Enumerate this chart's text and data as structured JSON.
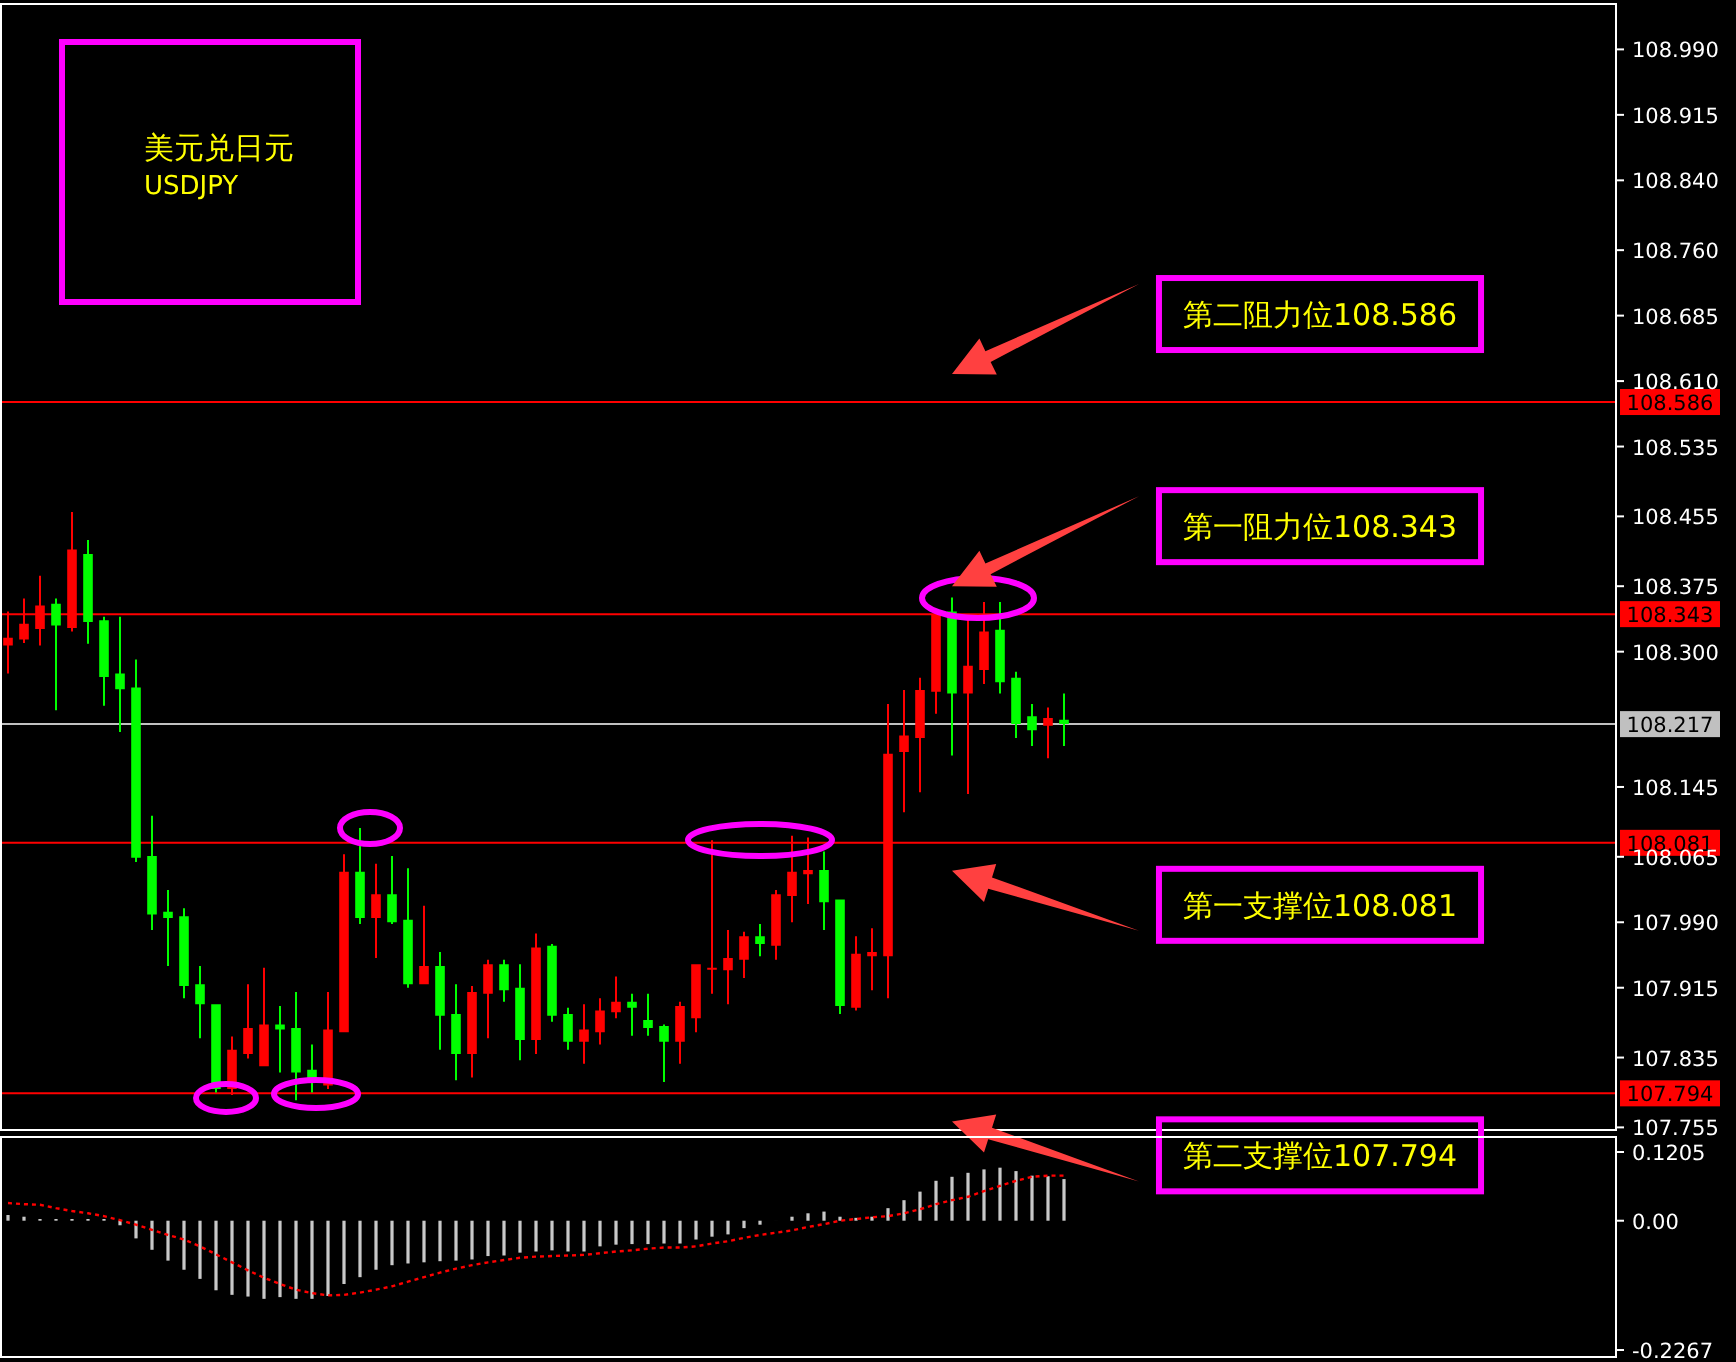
{
  "chart_data": [
    {
      "type": "candlestick",
      "title": "美元兑日元",
      "subtitle": "USDJPY",
      "tick_labels": "y",
      "categories": [
        null,
        null,
        null,
        null,
        null,
        null,
        null,
        null,
        null,
        null,
        null,
        null,
        null,
        null,
        null,
        null,
        null,
        null,
        null,
        null,
        null,
        null,
        null,
        null,
        null,
        null,
        null,
        null,
        null,
        null,
        null,
        null,
        null,
        null,
        null,
        null,
        null,
        null,
        null,
        null,
        null,
        null,
        null,
        null,
        null,
        null,
        null,
        null,
        null,
        null,
        null,
        null,
        null,
        null,
        null,
        null,
        null,
        null,
        null,
        null,
        null,
        null,
        null,
        null,
        null,
        null,
        null,
        null,
        null,
        null,
        null,
        null,
        null,
        null,
        null,
        null,
        null,
        null,
        null,
        null,
        null,
        null,
        null,
        null,
        null,
        null,
        null,
        null,
        null,
        null,
        null,
        null,
        null,
        null,
        null,
        null,
        null,
        null,
        null,
        null,
        null
      ],
      "ohlc": [
        [
          108.307,
          108.346,
          108.275,
          108.316
        ],
        [
          108.314,
          108.361,
          108.31,
          108.332
        ],
        [
          108.326,
          108.387,
          108.307,
          108.353
        ],
        [
          108.355,
          108.361,
          108.233,
          108.33
        ],
        [
          108.327,
          108.46,
          108.323,
          108.417
        ],
        [
          108.412,
          108.428,
          108.309,
          108.334
        ],
        [
          108.336,
          108.34,
          108.238,
          108.271
        ],
        [
          108.275,
          108.34,
          108.208,
          108.257
        ],
        [
          108.259,
          108.291,
          108.059,
          108.064
        ],
        [
          108.066,
          108.112,
          107.981,
          107.999
        ],
        [
          108.002,
          108.027,
          107.94,
          107.995
        ],
        [
          107.997,
          108.006,
          107.903,
          107.917
        ],
        [
          107.919,
          107.94,
          107.857,
          107.896
        ],
        [
          107.896,
          107.896,
          107.795,
          107.799
        ],
        [
          107.799,
          107.859,
          107.792,
          107.844
        ],
        [
          107.839,
          107.919,
          107.834,
          107.869
        ],
        [
          107.825,
          107.938,
          107.825,
          107.873
        ],
        [
          107.873,
          107.894,
          107.818,
          107.867
        ],
        [
          107.869,
          107.91,
          107.786,
          107.818
        ],
        [
          107.821,
          107.85,
          107.795,
          107.809
        ],
        [
          107.803,
          107.91,
          107.799,
          107.867
        ],
        [
          107.864,
          108.068,
          107.864,
          108.048
        ],
        [
          108.048,
          108.098,
          107.988,
          107.995
        ],
        [
          107.995,
          108.057,
          107.949,
          108.022
        ],
        [
          108.022,
          108.066,
          107.988,
          107.99
        ],
        [
          107.993,
          108.052,
          107.915,
          107.919
        ],
        [
          107.919,
          108.009,
          107.919,
          107.94
        ],
        [
          107.94,
          107.956,
          107.844,
          107.883
        ],
        [
          107.885,
          107.919,
          107.809,
          107.839
        ],
        [
          107.839,
          107.917,
          107.812,
          107.91
        ],
        [
          107.908,
          107.947,
          107.857,
          107.942
        ],
        [
          107.942,
          107.947,
          107.899,
          107.912
        ],
        [
          107.915,
          107.942,
          107.832,
          107.855
        ],
        [
          107.855,
          107.977,
          107.839,
          107.961
        ],
        [
          107.963,
          107.965,
          107.876,
          107.883
        ],
        [
          107.885,
          107.892,
          107.844,
          107.853
        ],
        [
          107.853,
          107.896,
          107.828,
          107.867
        ],
        [
          107.864,
          107.903,
          107.85,
          107.889
        ],
        [
          107.887,
          107.928,
          107.88,
          107.899
        ],
        [
          107.899,
          107.908,
          107.86,
          107.892
        ],
        [
          107.878,
          107.908,
          107.86,
          107.869
        ],
        [
          107.871,
          107.873,
          107.807,
          107.853
        ],
        [
          107.853,
          107.899,
          107.828,
          107.894
        ],
        [
          107.88,
          107.942,
          107.864,
          107.942
        ],
        [
          107.936,
          108.084,
          107.908,
          107.938
        ],
        [
          107.935,
          107.981,
          107.896,
          107.949
        ],
        [
          107.947,
          107.979,
          107.926,
          107.974
        ],
        [
          107.974,
          107.988,
          107.951,
          107.965
        ],
        [
          107.963,
          108.027,
          107.947,
          108.022
        ],
        [
          108.02,
          108.089,
          107.99,
          108.048
        ],
        [
          108.045,
          108.087,
          108.011,
          108.05
        ],
        [
          108.05,
          108.071,
          107.981,
          108.013
        ],
        [
          108.016,
          108.016,
          107.885,
          107.894
        ],
        [
          107.892,
          107.974,
          107.889,
          107.954
        ],
        [
          107.951,
          107.983,
          107.912,
          107.956
        ],
        [
          107.951,
          108.24,
          107.903,
          108.183
        ],
        [
          108.185,
          108.256,
          108.116,
          108.204
        ],
        [
          108.201,
          108.27,
          108.139,
          108.256
        ],
        [
          108.254,
          108.348,
          108.229,
          108.343
        ],
        [
          108.346,
          108.362,
          108.181,
          108.252
        ],
        [
          108.252,
          108.341,
          108.137,
          108.284
        ],
        [
          108.279,
          108.357,
          108.263,
          108.323
        ],
        [
          108.325,
          108.357,
          108.252,
          108.265
        ],
        [
          108.27,
          108.277,
          108.201,
          108.217
        ],
        [
          108.226,
          108.24,
          108.192,
          108.21
        ],
        [
          108.215,
          108.236,
          108.178,
          108.224
        ],
        [
          108.222,
          108.252,
          108.192,
          108.217
        ],
        null,
        null,
        null,
        null,
        null,
        null,
        null,
        null,
        null,
        null,
        null,
        null,
        null,
        null,
        null,
        null,
        null,
        null,
        null,
        null,
        null,
        null,
        null,
        null,
        null,
        null,
        null,
        null,
        null,
        null,
        null,
        null,
        null,
        null
      ],
      "colors": [
        "#ff0000",
        "#ff0000",
        "#ff0000",
        "#00ff00",
        "#ff0000",
        "#00ff00",
        "#00ff00",
        "#00ff00",
        "#00ff00",
        "#00ff00",
        "#00ff00",
        "#00ff00",
        "#00ff00",
        "#00ff00",
        "#ff0000",
        "#ff0000",
        "#ff0000",
        "#00ff00",
        "#00ff00",
        "#00ff00",
        "#ff0000",
        "#ff0000",
        "#00ff00",
        "#ff0000",
        "#00ff00",
        "#00ff00",
        "#ff0000",
        "#00ff00",
        "#00ff00",
        "#ff0000",
        "#ff0000",
        "#00ff00",
        "#00ff00",
        "#ff0000",
        "#00ff00",
        "#00ff00",
        "#ff0000",
        "#ff0000",
        "#ff0000",
        "#00ff00",
        "#00ff00",
        "#00ff00",
        "#ff0000",
        "#ff0000",
        "#ff0000",
        "#ff0000",
        "#ff0000",
        "#00ff00",
        "#ff0000",
        "#ff0000",
        "#ff0000",
        "#00ff00",
        "#00ff00",
        "#ff0000",
        "#ff0000",
        "#ff0000",
        "#ff0000",
        "#ff0000",
        "#ff0000",
        "#00ff00",
        "#ff0000",
        "#ff0000",
        "#00ff00",
        "#00ff00",
        "#00ff00",
        "#ff0000",
        "#00ff00",
        null,
        null,
        null,
        null,
        null,
        null,
        null,
        null,
        null,
        null,
        null,
        null,
        null,
        null,
        null,
        null,
        null,
        null,
        null,
        null,
        null,
        null,
        null,
        null,
        null,
        null,
        null,
        null,
        null,
        null,
        null,
        null,
        null,
        null
      ],
      "ylim": [
        107.752,
        109.042
      ],
      "yticks": [
        {
          "value": 108.99,
          "label": "108.990"
        },
        108.915,
        {
          "value": 108.84,
          "label": "108.840"
        },
        {
          "value": 108.76,
          "label": "108.760"
        },
        108.685,
        {
          "value": 108.61,
          "label": "108.610"
        },
        108.535,
        108.455,
        108.375,
        {
          "value": 108.3,
          "label": "108.300"
        },
        108.145,
        108.065,
        {
          "value": 107.99,
          "label": "107.990"
        },
        107.915,
        107.835,
        107.755
      ],
      "ref_lines": [
        {
          "axis": "y",
          "value": 108.586,
          "label": "108.586",
          "color": "#ff0000"
        },
        {
          "axis": "y",
          "value": 108.343,
          "label": "108.343",
          "color": "#ff0000"
        },
        {
          "axis": "y",
          "value": 108.217,
          "label": "108.217",
          "color": "#c0c0c0"
        },
        {
          "axis": "y",
          "value": 108.081,
          "label": "108.081",
          "color": "#ff0000"
        },
        {
          "axis": "y",
          "value": 107.794,
          "label": "107.794",
          "color": "#ff0000"
        }
      ],
      "annotations": [
        {
          "text": "第二阻力位108.586",
          "y": 108.586
        },
        {
          "text": "第一阻力位108.343",
          "y": 108.343
        },
        {
          "text": "第一支撑位108.081",
          "y": 108.081
        },
        {
          "text": "第二支撑位107.794",
          "y": 107.794
        }
      ]
    },
    {
      "type": "bar",
      "tick_labels": "y",
      "categories": [
        null,
        null,
        null,
        null,
        null,
        null,
        null,
        null,
        null,
        null,
        null,
        null,
        null,
        null,
        null,
        null,
        null,
        null,
        null,
        null,
        null,
        null,
        null,
        null,
        null,
        null,
        null,
        null,
        null,
        null,
        null,
        null,
        null,
        null,
        null,
        null,
        null,
        null,
        null,
        null,
        null,
        null,
        null,
        null,
        null,
        null,
        null,
        null,
        null,
        null,
        null,
        null,
        null,
        null,
        null,
        null,
        null,
        null,
        null,
        null,
        null,
        null,
        null,
        null,
        null,
        null,
        null,
        null,
        null,
        null,
        null,
        null,
        null,
        null,
        null,
        null,
        null,
        null,
        null,
        null,
        null,
        null,
        null,
        null,
        null,
        null,
        null,
        null,
        null,
        null,
        null,
        null,
        null,
        null,
        null,
        null,
        null,
        null,
        null,
        null,
        null
      ],
      "series": [
        {
          "type": "bar",
          "color": "#c8c8c8",
          "values": [
            0.01,
            0.007,
            0.003,
            0.003,
            0.003,
            0.003,
            0.003,
            -0.008,
            -0.031,
            -0.051,
            -0.07,
            -0.086,
            -0.102,
            -0.122,
            -0.13,
            -0.133,
            -0.137,
            -0.134,
            -0.137,
            -0.137,
            -0.132,
            -0.111,
            -0.099,
            -0.086,
            -0.078,
            -0.075,
            -0.073,
            -0.071,
            -0.07,
            -0.068,
            -0.062,
            -0.061,
            -0.056,
            -0.054,
            -0.052,
            -0.054,
            -0.054,
            -0.045,
            -0.042,
            -0.041,
            -0.041,
            -0.04,
            -0.04,
            -0.033,
            -0.028,
            -0.024,
            -0.013,
            -0.007,
            0,
            0.007,
            0.013,
            0.016,
            0.007,
            0.005,
            0.007,
            0.022,
            0.036,
            0.051,
            0.07,
            0.077,
            0.084,
            0.09,
            0.093,
            0.087,
            0.079,
            0.078,
            0.073,
            null,
            null,
            null,
            null,
            null,
            null,
            null,
            null,
            null,
            null,
            null,
            null,
            null,
            null,
            null,
            null,
            null,
            null,
            null,
            null,
            null,
            null,
            null,
            null,
            null,
            null,
            null,
            null,
            null,
            null,
            null,
            null,
            null,
            null
          ]
        },
        {
          "type": "line",
          "color": "#ff0000",
          "line_style": "dotted",
          "values": [
            0.031,
            0.029,
            0.028,
            0.022,
            0.017,
            0.013,
            0.008,
            0.001,
            -0.007,
            -0.016,
            -0.025,
            -0.033,
            -0.045,
            -0.059,
            -0.073,
            -0.087,
            -0.1,
            -0.111,
            -0.121,
            -0.127,
            -0.131,
            -0.13,
            -0.126,
            -0.121,
            -0.115,
            -0.107,
            -0.099,
            -0.091,
            -0.084,
            -0.078,
            -0.073,
            -0.069,
            -0.065,
            -0.063,
            -0.062,
            -0.061,
            -0.06,
            -0.057,
            -0.054,
            -0.052,
            -0.049,
            -0.047,
            -0.047,
            -0.045,
            -0.04,
            -0.036,
            -0.03,
            -0.025,
            -0.021,
            -0.017,
            -0.011,
            -0.006,
            0,
            0.003,
            0.006,
            0.008,
            0.013,
            0.02,
            0.029,
            0.036,
            0.042,
            0.052,
            0.061,
            0.07,
            0.077,
            0.079,
            0.079,
            null,
            null,
            null,
            null,
            null,
            null,
            null,
            null,
            null,
            null,
            null,
            null,
            null,
            null,
            null,
            null,
            null,
            null,
            null,
            null,
            null,
            null,
            null,
            null,
            null,
            null,
            null,
            null,
            null,
            null,
            null,
            null,
            null,
            null
          ]
        }
      ],
      "ylim": [
        -0.2355,
        0.1468
      ],
      "yticks": [
        0.1205,
        {
          "value": 0,
          "label": "0.00"
        },
        -0.2267
      ]
    }
  ]
}
